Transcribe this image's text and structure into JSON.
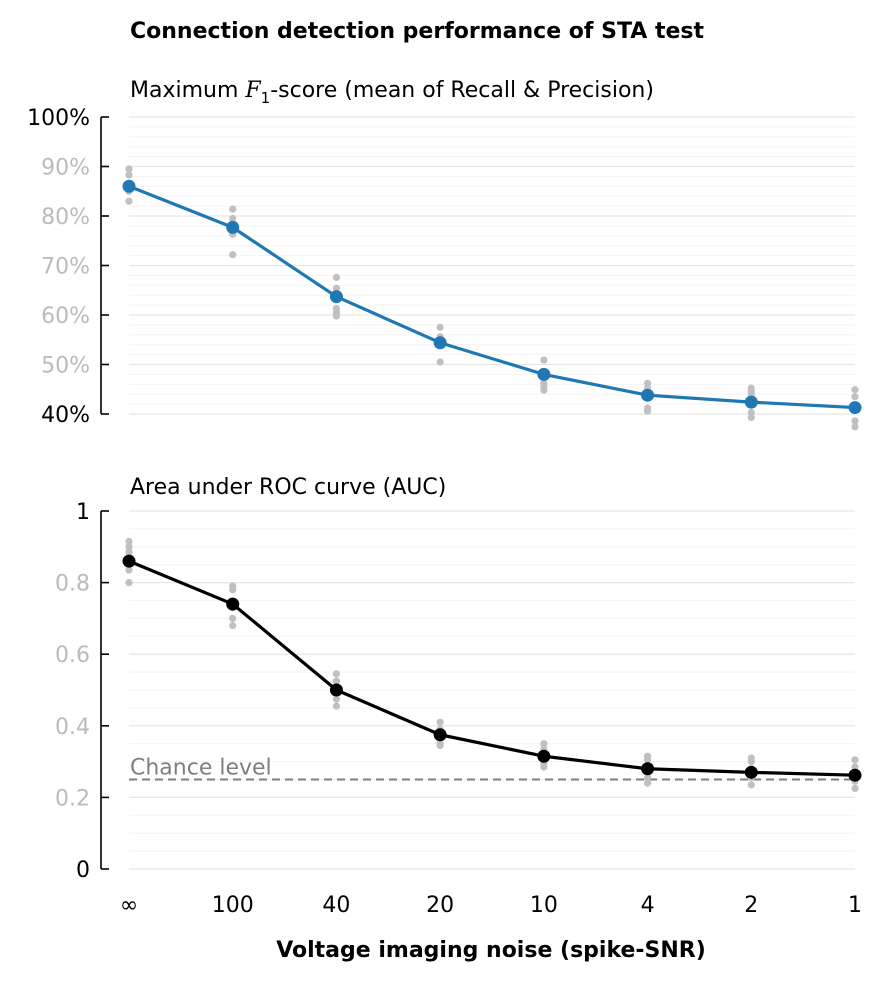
{
  "figure_title": "Connection detection performance of STA test",
  "xlabel": "Voltage imaging noise (spike-SNR)",
  "colors": {
    "f1_line": "#1f77b4",
    "auc_line": "#000000",
    "samples": "#c0c0c0",
    "grid": "#e6e6e6",
    "minor_grid": "#f3f3f3",
    "chance": "#7f7f7f",
    "dim_tick": "#bbbbbb"
  },
  "chart_data": [
    {
      "type": "line",
      "title_prefix": "Maximum ",
      "title_math_main": "F",
      "title_math_sub": "1",
      "title_suffix": "-score (mean of Recall & Precision)",
      "categories": [
        "∞",
        "100",
        "40",
        "20",
        "10",
        "4",
        "2",
        "1"
      ],
      "series": [
        {
          "values": [
            86,
            77.7,
            63.7,
            54.4,
            48,
            43.8,
            42.4,
            41.3
          ]
        }
      ],
      "samples": [
        [
          89.5,
          88.3,
          85,
          83
        ],
        [
          81.4,
          79.5,
          78.5,
          77,
          76.3,
          72.2
        ],
        [
          67.6,
          65.4,
          61.3,
          60.5,
          59.8
        ],
        [
          57.5,
          55.6,
          53.8,
          50.5
        ],
        [
          50.9,
          48.5,
          46.2,
          45.5,
          44.8
        ],
        [
          46.2,
          45.3,
          44.4,
          41.2,
          40.6
        ],
        [
          45.2,
          44.5,
          43.9,
          40.3,
          39.3
        ],
        [
          44.9,
          43.5,
          38.6,
          37.4
        ]
      ],
      "yticks": [
        "100%",
        "90%",
        "80%",
        "70%",
        "60%",
        "50%",
        "40%"
      ],
      "ytick_values": [
        100,
        90,
        80,
        70,
        60,
        50,
        40
      ],
      "ylim": [
        40,
        100
      ],
      "grid": true
    },
    {
      "type": "line",
      "title": "Area under ROC curve (AUC)",
      "categories": [
        "∞",
        "100",
        "40",
        "20",
        "10",
        "4",
        "2",
        "1"
      ],
      "series": [
        {
          "values": [
            0.86,
            0.74,
            0.5,
            0.375,
            0.315,
            0.28,
            0.27,
            0.262
          ]
        }
      ],
      "samples": [
        [
          0.915,
          0.9,
          0.885,
          0.86,
          0.835,
          0.8
        ],
        [
          0.79,
          0.78,
          0.745,
          0.73,
          0.7,
          0.68
        ],
        [
          0.545,
          0.525,
          0.5,
          0.475,
          0.455
        ],
        [
          0.41,
          0.39,
          0.37,
          0.35,
          0.345
        ],
        [
          0.35,
          0.335,
          0.32,
          0.295,
          0.285
        ],
        [
          0.315,
          0.305,
          0.285,
          0.255,
          0.24
        ],
        [
          0.31,
          0.3,
          0.28,
          0.255,
          0.235
        ],
        [
          0.305,
          0.285,
          0.27,
          0.245,
          0.225
        ]
      ],
      "yticks": [
        "1",
        "0.8",
        "0.6",
        "0.4",
        "0.2",
        "0"
      ],
      "ytick_values": [
        1,
        0.8,
        0.6,
        0.4,
        0.2,
        0
      ],
      "ylim": [
        0,
        1
      ],
      "chance_level": 0.25,
      "chance_label": "Chance level",
      "grid": true
    }
  ]
}
